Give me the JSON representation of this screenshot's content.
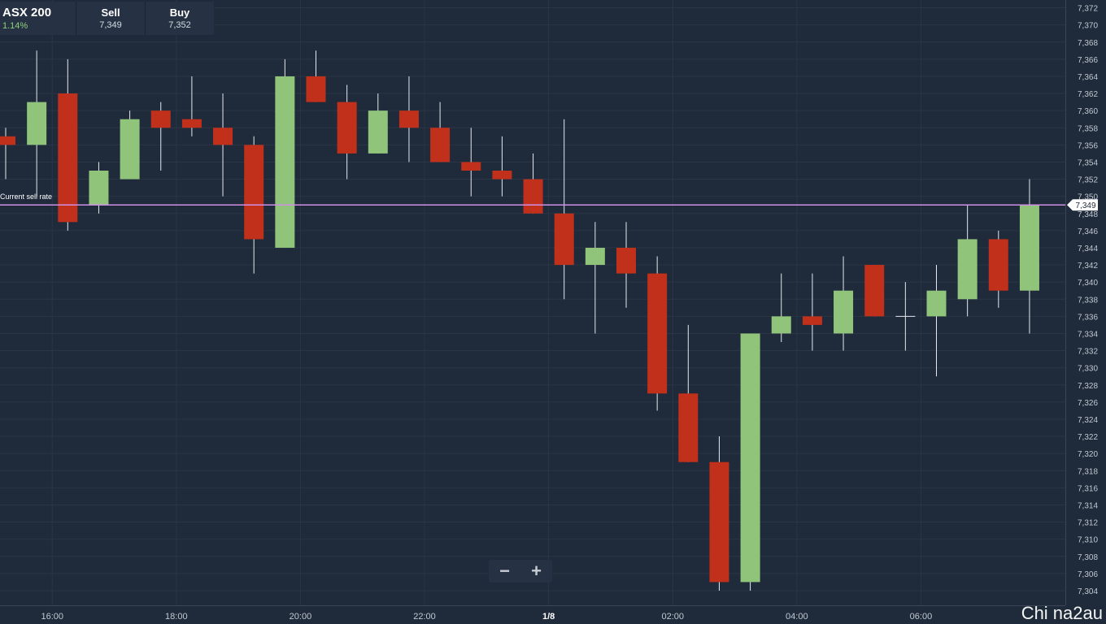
{
  "ticker": {
    "symbol": "ASX 200",
    "change": "1.14%",
    "sell_label": "Sell",
    "sell_value": "7,349",
    "buy_label": "Buy",
    "buy_value": "7,352"
  },
  "zoom": {
    "minus": "−",
    "plus": "+"
  },
  "watermark": "Chi na2au",
  "colors": {
    "background": "#1f2a3a",
    "up": "#8fc47a",
    "down": "#c1301a",
    "current_line": "#cf8fe6",
    "grid": "#2a3646"
  },
  "chart_data": {
    "type": "candlestick",
    "current_sell_rate": {
      "label": "Current sell rate",
      "value": 7349,
      "value_label": "7,349"
    },
    "y_axis": {
      "min": 7303,
      "max": 7373,
      "tick_step": 2
    },
    "x_ticks": [
      {
        "label": "16:00",
        "index": 1.5
      },
      {
        "label": "18:00",
        "index": 5.5
      },
      {
        "label": "20:00",
        "index": 9.5
      },
      {
        "label": "22:00",
        "index": 13.5
      },
      {
        "label": "1/8",
        "index": 17.5,
        "bold": true
      },
      {
        "label": "02:00",
        "index": 21.5
      },
      {
        "label": "04:00",
        "index": 25.5
      },
      {
        "label": "06:00",
        "index": 29.5
      }
    ],
    "candles": [
      {
        "o": 7357,
        "h": 7358,
        "l": 7352,
        "c": 7356
      },
      {
        "o": 7356,
        "h": 7367,
        "l": 7350,
        "c": 7361
      },
      {
        "o": 7362,
        "h": 7366,
        "l": 7346,
        "c": 7347
      },
      {
        "o": 7349,
        "h": 7354,
        "l": 7348,
        "c": 7353
      },
      {
        "o": 7352,
        "h": 7360,
        "l": 7352,
        "c": 7359
      },
      {
        "o": 7360,
        "h": 7361,
        "l": 7353,
        "c": 7358
      },
      {
        "o": 7359,
        "h": 7364,
        "l": 7357,
        "c": 7358
      },
      {
        "o": 7358,
        "h": 7362,
        "l": 7350,
        "c": 7356
      },
      {
        "o": 7356,
        "h": 7357,
        "l": 7341,
        "c": 7345
      },
      {
        "o": 7344,
        "h": 7366,
        "l": 7344,
        "c": 7364
      },
      {
        "o": 7364,
        "h": 7367,
        "l": 7361,
        "c": 7361
      },
      {
        "o": 7361,
        "h": 7363,
        "l": 7352,
        "c": 7355
      },
      {
        "o": 7355,
        "h": 7362,
        "l": 7355,
        "c": 7360
      },
      {
        "o": 7360,
        "h": 7364,
        "l": 7354,
        "c": 7358
      },
      {
        "o": 7358,
        "h": 7361,
        "l": 7354,
        "c": 7354
      },
      {
        "o": 7354,
        "h": 7358,
        "l": 7350,
        "c": 7353
      },
      {
        "o": 7353,
        "h": 7357,
        "l": 7350,
        "c": 7352
      },
      {
        "o": 7352,
        "h": 7355,
        "l": 7348,
        "c": 7348
      },
      {
        "o": 7348,
        "h": 7359,
        "l": 7338,
        "c": 7342
      },
      {
        "o": 7342,
        "h": 7347,
        "l": 7334,
        "c": 7344
      },
      {
        "o": 7344,
        "h": 7347,
        "l": 7337,
        "c": 7341
      },
      {
        "o": 7341,
        "h": 7343,
        "l": 7325,
        "c": 7327
      },
      {
        "o": 7327,
        "h": 7335,
        "l": 7319,
        "c": 7319
      },
      {
        "o": 7319,
        "h": 7322,
        "l": 7304,
        "c": 7305
      },
      {
        "o": 7305,
        "h": 7334,
        "l": 7304,
        "c": 7334
      },
      {
        "o": 7334,
        "h": 7341,
        "l": 7333,
        "c": 7336
      },
      {
        "o": 7336,
        "h": 7341,
        "l": 7332,
        "c": 7335
      },
      {
        "o": 7334,
        "h": 7343,
        "l": 7332,
        "c": 7339
      },
      {
        "o": 7342,
        "h": 7342,
        "l": 7336,
        "c": 7336
      },
      {
        "o": 7336,
        "h": 7340,
        "l": 7332,
        "c": 7336
      },
      {
        "o": 7336,
        "h": 7342,
        "l": 7329,
        "c": 7339
      },
      {
        "o": 7338,
        "h": 7349,
        "l": 7336,
        "c": 7345
      },
      {
        "o": 7345,
        "h": 7346,
        "l": 7337,
        "c": 7339
      },
      {
        "o": 7339,
        "h": 7352,
        "l": 7334,
        "c": 7349
      }
    ]
  }
}
